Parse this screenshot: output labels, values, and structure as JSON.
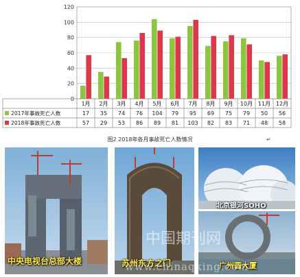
{
  "chart_data": {
    "type": "bar",
    "categories": [
      "1月",
      "2月",
      "3月",
      "4月",
      "5月",
      "6月",
      "7月",
      "8月",
      "9月",
      "10月",
      "11月",
      "12月"
    ],
    "series": [
      {
        "name": "2017年事故死亡人数",
        "color": "#8cc63f",
        "values": [
          17,
          35,
          74,
          76,
          104,
          79,
          95,
          69,
          75,
          79,
          50,
          56
        ]
      },
      {
        "name": "2018年事故死亡人数",
        "color": "#e0364a",
        "values": [
          57,
          29,
          53,
          86,
          89,
          81,
          103,
          82,
          83,
          71,
          48,
          58
        ]
      }
    ],
    "ylim": [
      0,
      120
    ],
    "yticks": [
      0,
      20,
      40,
      60,
      80,
      100,
      120
    ],
    "grid": true,
    "legend": "data-table"
  },
  "caption": {
    "text": "图2   2018年各月事故死亡人数情况",
    "mark": "↵"
  },
  "photos": [
    {
      "label": "中央电视台总部大楼",
      "label_color": "#ffe84a"
    },
    {
      "label": "苏州东方之门",
      "label_color": "#ffe84a"
    },
    {
      "label": "北京银河SOHO",
      "label_color": "#ffffff"
    },
    {
      "label": "广州圆大厦",
      "label_color": "#ffe84a"
    }
  ],
  "watermark": {
    "top": "中国期刊网",
    "bottom": "www.chinaqking.com"
  }
}
